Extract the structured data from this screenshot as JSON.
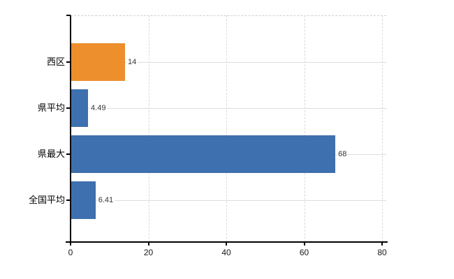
{
  "chart_data": {
    "type": "bar",
    "orientation": "horizontal",
    "title": "",
    "xlabel": "",
    "ylabel": "",
    "categories": [
      "西区",
      "県平均",
      "県最大",
      "全国平均"
    ],
    "values": [
      14,
      4.49,
      68,
      6.41
    ],
    "value_labels": [
      "14",
      "4.49",
      "68",
      "6.41"
    ],
    "bar_colors": [
      "#EC8F2C",
      "#3E6FAE",
      "#3E6FAE",
      "#3E6FAE"
    ],
    "xlim": [
      0,
      80
    ],
    "x_ticks": [
      0,
      20,
      40,
      60,
      80
    ],
    "x_tick_labels": [
      "0",
      "20",
      "40",
      "60",
      "80"
    ],
    "grid": {
      "vertical_dashed": true,
      "horizontal_solid": true,
      "top_border_dashed": true
    },
    "legend": null,
    "colors": {
      "highlight_bar": "#EC8F2C",
      "default_bar": "#3E6FAE",
      "axis": "#000000",
      "vertical_grid": "#D9D9D9",
      "horizontal_grid": "#DEDEDE",
      "tick_label_text": "#1A1A1A",
      "value_label_text": "#333333",
      "category_label_text": "#000000",
      "background": "#FFFFFF"
    }
  }
}
